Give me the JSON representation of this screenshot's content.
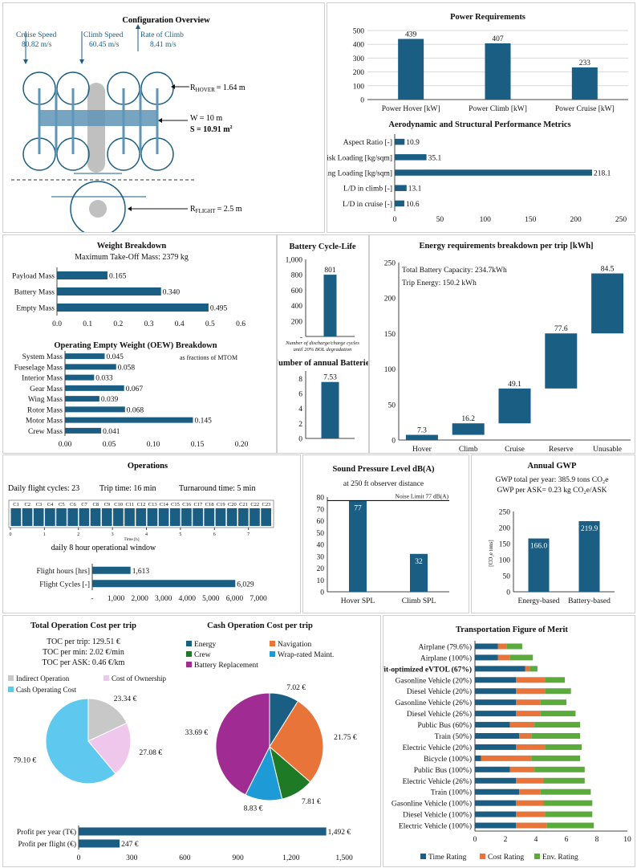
{
  "colors": {
    "primary": "#1b5e84",
    "light": "#5f95b6",
    "orange": "#e8743a",
    "green": "#5aab3c",
    "purple": "#a02b93",
    "cyan": "#5ec8ef",
    "gray": "#c8c8c8",
    "pink": "#f0c7ec",
    "darkgreen": "#1e7a25",
    "blue2": "#1e9bd6"
  },
  "config": {
    "title": "Configuration Overview",
    "cruise_label": "Cruise Speed",
    "cruise_value": "80.82 m/s",
    "climb_label": "Climb Speed",
    "climb_value": "60.45 m/s",
    "roc_label": "Rate of Climb",
    "roc_value": "8.41 m/s",
    "r_hover_pre": "R",
    "r_hover_sub": "HOVER",
    "r_hover_post": "= 1.64 m",
    "w_text": "W = 10 m",
    "s_text": "S = 10.91 m",
    "s_sup": "2",
    "r_flight_pre": "R",
    "r_flight_sub": "FLIGHT",
    "r_flight_post": "= 2.5 m"
  },
  "power": {
    "title": "Power Requirements",
    "chart_data": {
      "type": "bar",
      "categories": [
        "Power Hover [kW]",
        "Power Climb [kW]",
        "Power Cruise [kW]"
      ],
      "values": [
        439,
        407,
        233
      ],
      "ylim": [
        0,
        500
      ],
      "yticks": [
        0,
        100,
        200,
        300,
        400,
        500
      ]
    }
  },
  "aero": {
    "title": "Aerodynamic and Structural Performance Metrics",
    "chart_data": {
      "type": "bar",
      "orientation": "horizontal",
      "categories": [
        "Aspect Ratio [-]",
        "Disk Loading [kg/sqm]",
        "Wing Loading [kg/sqm]",
        "L/D in climb [-]",
        "L/D in cruise [-]"
      ],
      "values": [
        10.9,
        35.1,
        218.1,
        13.1,
        10.6
      ],
      "xlim": [
        0,
        250
      ],
      "xticks": [
        0,
        50,
        100,
        150,
        200,
        250
      ]
    }
  },
  "weight": {
    "title": "Weight Breakdown",
    "subtitle": "Maximum Take-Off Mass: 2379 kg",
    "chart_data": {
      "type": "bar",
      "orientation": "horizontal",
      "categories": [
        "Payload Mass",
        "Battery Mass",
        "Empty Mass"
      ],
      "values": [
        0.165,
        0.34,
        0.495
      ],
      "labels": [
        "0.165",
        "0.340",
        "0.495"
      ],
      "xlim": [
        0,
        0.6
      ],
      "xticks": [
        "0.0",
        "0.1",
        "0.2",
        "0.3",
        "0.4",
        "0.5",
        "0.6"
      ]
    }
  },
  "oew": {
    "title": "Operating Empty Weight (OEW) Breakdown",
    "note": "as fractions of MTOM",
    "chart_data": {
      "type": "bar",
      "orientation": "horizontal",
      "categories": [
        "System Mass",
        "Fueselage Mass",
        "Interior Mass",
        "Gear Mass",
        "Wing Mass",
        "Rotor Mass",
        "Motor Mass",
        "Crew Mass"
      ],
      "values": [
        0.045,
        0.058,
        0.033,
        0.067,
        0.039,
        0.068,
        0.145,
        0.041
      ],
      "labels": [
        "0.045",
        "0.058",
        "0.033",
        "0.067",
        "0.039",
        "0.068",
        "0.145",
        "0.041"
      ],
      "xlim": [
        0,
        0.2
      ],
      "xticks": [
        "0.00",
        "0.05",
        "0.10",
        "0.15",
        "0.20"
      ]
    }
  },
  "battery": {
    "title": "Battery Cycle-Life",
    "caption1": "Number of discharge/charge cycles",
    "caption2": "until 20% BOL degradation",
    "chart_data": {
      "type": "bar",
      "values": [
        801
      ],
      "labels": [
        "801"
      ],
      "ylim": [
        0,
        1000
      ],
      "yticks": [
        "-",
        "200",
        "400",
        "600",
        "800",
        "1,000"
      ]
    }
  },
  "annual_batt": {
    "title": "Number of annual Batteries",
    "chart_data": {
      "type": "bar",
      "values": [
        7.53
      ],
      "labels": [
        "7.53"
      ],
      "ylim": [
        0,
        9
      ],
      "yticks": [
        "0",
        "2",
        "4",
        "6",
        "8"
      ]
    }
  },
  "energy": {
    "title": "Energy requirements breakdown per trip [kWh]",
    "note1": "Total Battery Capacity: 234.7kWh",
    "note2": "Trip Energy: 150.2 kWh",
    "chart_data": {
      "type": "bar",
      "subtype": "waterfall",
      "categories": [
        "Hover",
        "Climb",
        "Cruise",
        "Reserve",
        "Unusable"
      ],
      "values": [
        7.3,
        16.2,
        49.1,
        77.6,
        84.5
      ],
      "labels": [
        "7.3",
        "16.2",
        "49.1",
        "77.6",
        "84.5"
      ],
      "ylim": [
        0,
        250
      ],
      "yticks": [
        0,
        50,
        100,
        150,
        200,
        250
      ]
    }
  },
  "ops": {
    "title": "Operations",
    "daily_cycles": "Daily flight cycles: 23",
    "trip_time": "Trip time: 16 min",
    "turnaround": "Turnaround time: 5 min",
    "cycles": [
      "C1",
      "C2",
      "C3",
      "C4",
      "C5",
      "C6",
      "C7",
      "C8",
      "C9",
      "C10",
      "C11",
      "C12",
      "C13",
      "C14",
      "C15",
      "C16",
      "C17",
      "C18",
      "C19",
      "C20",
      "C21",
      "C22",
      "C23"
    ],
    "timeline_ticks": [
      "0",
      "1",
      "2",
      "3",
      "4",
      "5",
      "6",
      "7"
    ],
    "timeline_label": "Time [h]",
    "window_caption": "daily 8 hour operational window",
    "chart_data": {
      "type": "bar",
      "orientation": "horizontal",
      "categories": [
        "Flight hours [hrs]",
        "Flight Cycles [-]"
      ],
      "values": [
        1613,
        6029
      ],
      "labels": [
        "1,613",
        "6,029"
      ],
      "xlim": [
        0,
        7000
      ],
      "xticks": [
        "-",
        "1,000",
        "2,000",
        "3,000",
        "4,000",
        "5,000",
        "6,000",
        "7,000"
      ]
    }
  },
  "spl": {
    "title": "Sound Pressure Level dB(A)",
    "subtitle": "at 250 ft observer distance",
    "limit_label": "Noise Limit 77 dB(A)",
    "chart_data": {
      "type": "bar",
      "categories": [
        "Hover SPL",
        "Climb SPL"
      ],
      "values": [
        77,
        32
      ],
      "labels": [
        "77",
        "32"
      ],
      "limit": 77,
      "ylim": [
        0,
        80
      ],
      "yticks": [
        0,
        10,
        20,
        30,
        40,
        50,
        60,
        70,
        80
      ]
    }
  },
  "gwp": {
    "title": "Annual GWP",
    "line1": "GWP total per year: 385.9 tons CO₂e",
    "line2": "GWP per ASK= 0.23 kg CO₂e/ASK",
    "ylabel": "[CO₂e tons]",
    "chart_data": {
      "type": "bar",
      "categories": [
        "Energy-based",
        "Battery-based"
      ],
      "values": [
        166.0,
        219.9
      ],
      "labels": [
        "166.0",
        "219.9"
      ],
      "ylim": [
        0,
        250
      ],
      "yticks": [
        0,
        50,
        100,
        150,
        200,
        250
      ]
    }
  },
  "toc": {
    "title": "Total Operation Cost per trip",
    "line1": "TOC per trip: 129.51 €",
    "line2": "TOC per min: 2.02 €/min",
    "line3": "TOC per ASK: 0.46 €/km",
    "chart_data": {
      "type": "pie",
      "categories": [
        "Indirect Operation",
        "Cost of Ownership",
        "Cash Operating Cost"
      ],
      "values": [
        23.34,
        27.08,
        79.1
      ],
      "labels": [
        "23.34 €",
        "27.08 €",
        "79.10 €"
      ]
    }
  },
  "coc": {
    "title": "Cash Operation Cost per trip",
    "chart_data": {
      "type": "pie",
      "categories": [
        "Energy",
        "Navigation",
        "Crew",
        "Wrap-rated Maint.",
        "Battery Replacement"
      ],
      "values": [
        7.02,
        21.75,
        7.81,
        8.83,
        33.69
      ],
      "labels": [
        "7.02 €",
        "21.75 €",
        "7.81 €",
        "8.83 €",
        "33.69 €"
      ]
    }
  },
  "profit": {
    "chart_data": {
      "type": "bar",
      "orientation": "horizontal",
      "categories": [
        "Profit per year (T€)",
        "Profit per flight (€)"
      ],
      "values": [
        1492,
        247
      ],
      "labels": [
        "1,492 €",
        "247 €"
      ],
      "xlim": [
        0,
        1600
      ],
      "xticks": [
        "0",
        "300",
        "600",
        "900",
        "1,200",
        "1,500"
      ]
    }
  },
  "tfm": {
    "title": "Transportation Figure of Merit",
    "legend": [
      "Time Rating",
      "Cost Rating",
      "Env. Rating"
    ],
    "chart_data": {
      "type": "bar",
      "orientation": "horizontal",
      "stacked": true,
      "categories": [
        "Airplane (79.6%)",
        "Airplane (100%)",
        "Profit-optimized eVTOL (67%)",
        "Gasonline Vehicle (20%)",
        "Diesel Vehicle (20%)",
        "Gasonline Vehicle (26%)",
        "Diesel Vehicle (26%)",
        "Public Bus (60%)",
        "Train (50%)",
        "Electric Vehicle (20%)",
        "Bicycle (100%)",
        "Public Bus (100%)",
        "Electric Vehicle (26%)",
        "Train (100%)",
        "Gasonline Vehicle (100%)",
        "Diesel Vehicle (100%)",
        "Electric Vehicle (100%)"
      ],
      "bold_index": 2,
      "series": [
        {
          "name": "Time Rating",
          "values": [
            1.5,
            1.5,
            3.3,
            2.7,
            2.7,
            2.7,
            2.7,
            2.3,
            2.9,
            2.7,
            0.4,
            2.3,
            2.7,
            2.9,
            2.7,
            2.7,
            2.7
          ]
        },
        {
          "name": "Cost Rating",
          "values": [
            0.6,
            0.8,
            0.3,
            1.9,
            1.9,
            1.6,
            1.6,
            1.6,
            0.8,
            1.9,
            3.3,
            1.6,
            1.8,
            1.4,
            1.8,
            1.9,
            2.0
          ]
        },
        {
          "name": "Env. Rating",
          "values": [
            1.0,
            1.5,
            0.5,
            1.3,
            1.7,
            1.7,
            2.3,
            3.0,
            3.2,
            2.4,
            3.2,
            3.3,
            2.7,
            3.3,
            3.2,
            3.1,
            3.1
          ]
        }
      ],
      "xlim": [
        0,
        10
      ],
      "xticks": [
        0,
        2,
        4,
        6,
        8,
        10
      ]
    }
  }
}
